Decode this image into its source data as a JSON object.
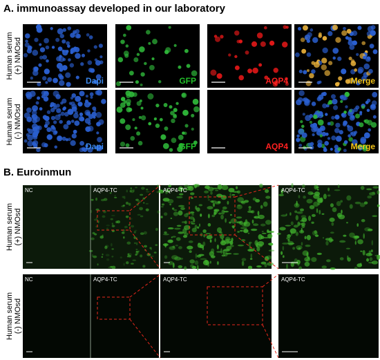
{
  "sections": [
    {
      "title": "A. immunoassay developed in our laboratory",
      "rows": [
        {
          "label": [
            "Human serum",
            "(+) NMOsd"
          ],
          "panels": [
            "Dapi",
            "GFP",
            "AQP4",
            "Merge"
          ]
        },
        {
          "label": [
            "Human serum",
            "(-) NMOsd"
          ],
          "panels": [
            "Dapi",
            "GFP",
            "AQP4",
            "Merge"
          ]
        }
      ]
    },
    {
      "title": "B. Euroinmun",
      "rows": [
        {
          "label": [
            "Human serum",
            "(+) NMOsd"
          ],
          "panels": [
            "NC",
            "AQP4-TC",
            "AQP4-TC",
            "AQP4-TC"
          ]
        },
        {
          "label": [
            "Human serum",
            "(-) NMOsd"
          ],
          "panels": [
            "NC",
            "AQP4-TC",
            "AQP4-TC",
            "AQP4-TC"
          ]
        }
      ]
    }
  ]
}
